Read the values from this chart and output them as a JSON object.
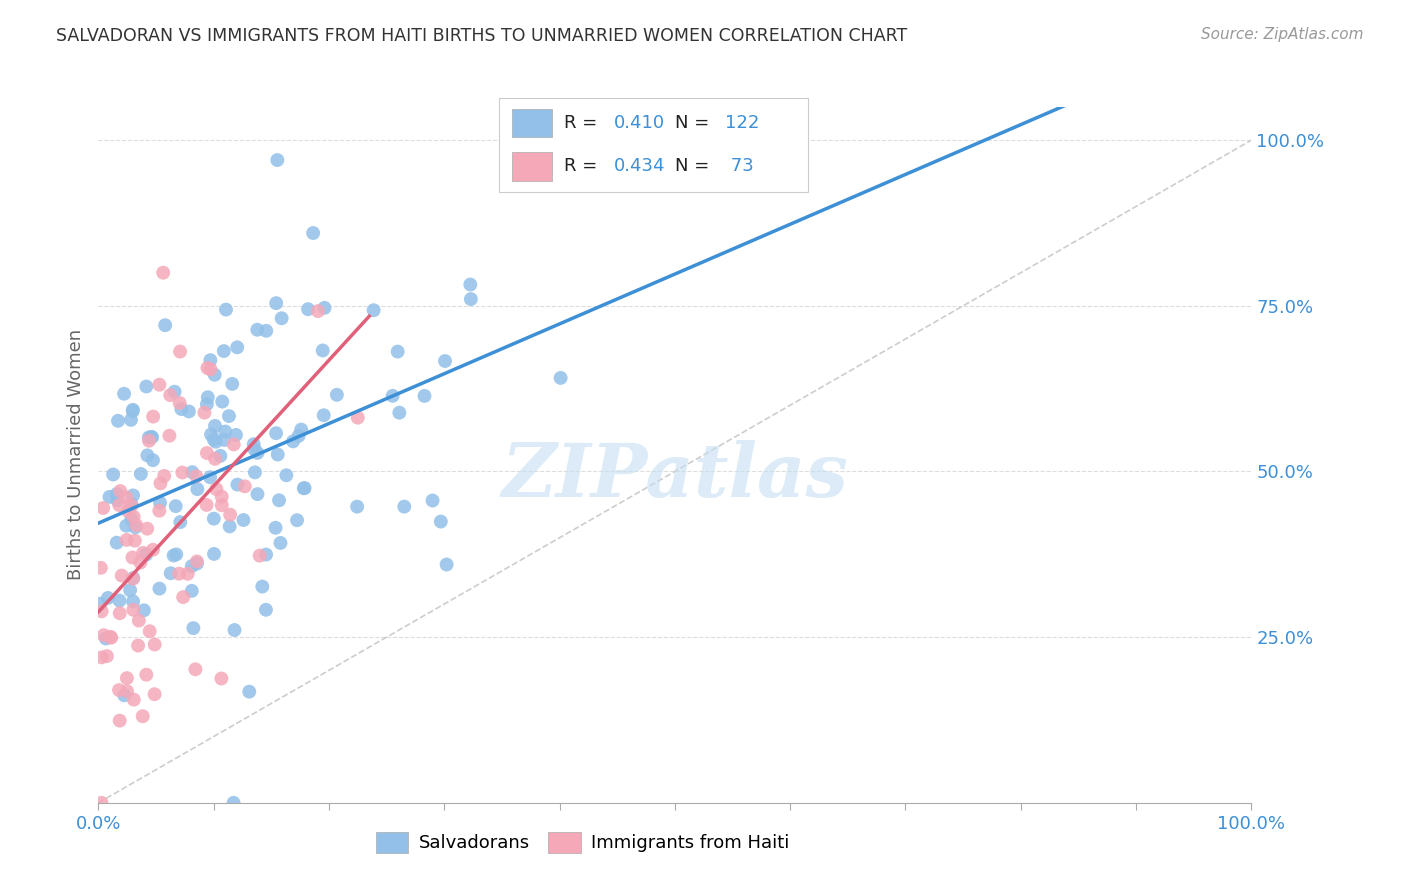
{
  "title": "SALVADORAN VS IMMIGRANTS FROM HAITI BIRTHS TO UNMARRIED WOMEN CORRELATION CHART",
  "source": "Source: ZipAtlas.com",
  "ylabel": "Births to Unmarried Women",
  "legend_label1": "Salvadorans",
  "legend_label2": "Immigrants from Haiti",
  "r1": 0.41,
  "n1": 122,
  "r2": 0.434,
  "n2": 73,
  "color_blue": "#92c0e8",
  "color_pink": "#f4a8b8",
  "color_line_blue": "#3d8fd6",
  "color_line_pink": "#e0607a",
  "color_diag": "#c8c8c8",
  "color_text_blue": "#3d8fd6",
  "watermark_color": "#c5dff2",
  "seed1": 12,
  "seed2": 7
}
